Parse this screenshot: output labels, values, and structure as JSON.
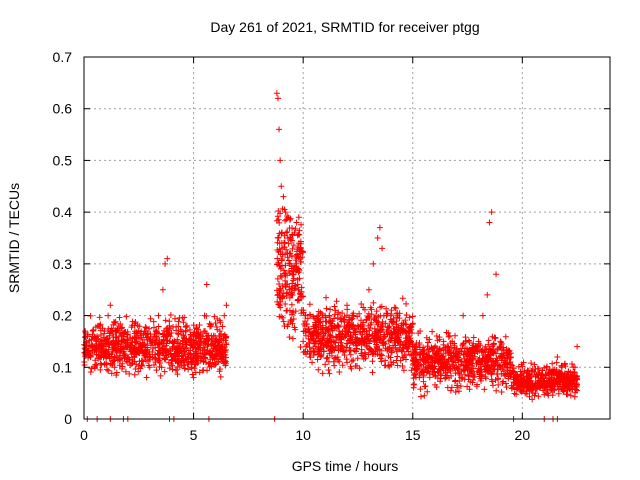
{
  "chart_data": {
    "type": "scatter",
    "title": "Day 261 of 2021, SRMTID for receiver ptgg",
    "xlabel": "GPS time / hours",
    "ylabel": "SRMTID / TECUs",
    "xlim": [
      0,
      24
    ],
    "ylim": [
      0,
      0.7
    ],
    "xticks": [
      0,
      5,
      10,
      15,
      20
    ],
    "yticks": [
      0,
      0.1,
      0.2,
      0.3,
      0.4,
      0.5,
      0.6,
      0.7
    ],
    "grid": true,
    "marker": "+",
    "marker_color": "#ff0000",
    "series": [
      {
        "name": "SRMTID",
        "x": [
          0.05,
          0.1,
          0.2,
          0.3,
          0.4,
          0.5,
          0.6,
          0.7,
          0.8,
          0.9,
          1.0,
          1.1,
          1.2,
          1.3,
          1.4,
          1.5,
          1.6,
          1.7,
          1.8,
          1.9,
          2.0,
          2.2,
          2.4,
          2.6,
          2.8,
          3.0,
          3.2,
          3.4,
          3.6,
          3.7,
          3.8,
          3.9,
          4.0,
          4.1,
          4.3,
          4.5,
          4.7,
          4.9,
          5.0,
          5.1,
          5.2,
          5.3,
          5.5,
          5.6,
          5.8,
          6.0,
          6.2,
          6.4,
          6.5,
          8.8,
          8.85,
          8.9,
          8.95,
          9.0,
          9.1,
          9.2,
          9.3,
          9.4,
          9.5,
          9.6,
          9.7,
          9.8,
          10.0,
          10.2,
          10.5,
          10.8,
          11.0,
          11.3,
          11.6,
          12.0,
          12.3,
          12.6,
          13.0,
          13.2,
          13.4,
          13.5,
          13.6,
          13.8,
          14.0,
          14.3,
          14.6,
          15.0,
          15.3,
          15.6,
          16.0,
          16.4,
          16.8,
          17.0,
          17.3,
          17.6,
          18.0,
          18.2,
          18.4,
          18.5,
          18.6,
          18.8,
          19.0,
          19.3,
          19.6,
          20.0,
          20.3,
          20.6,
          21.0,
          21.3,
          21.6,
          21.8,
          22.0,
          22.2,
          22.4,
          22.5
        ],
        "y": [
          0.17,
          0.15,
          0.13,
          0.12,
          0.14,
          0.1,
          0.16,
          0.18,
          0.15,
          0.12,
          0.14,
          0.2,
          0.22,
          0.17,
          0.1,
          0.09,
          0.16,
          0.14,
          0.13,
          0.12,
          0.11,
          0.13,
          0.15,
          0.14,
          0.12,
          0.1,
          0.16,
          0.2,
          0.25,
          0.3,
          0.31,
          0.18,
          0.12,
          0.14,
          0.11,
          0.15,
          0.18,
          0.1,
          0.08,
          0.09,
          0.12,
          0.15,
          0.2,
          0.26,
          0.18,
          0.15,
          0.17,
          0.2,
          0.22,
          0.63,
          0.62,
          0.56,
          0.5,
          0.45,
          0.43,
          0.4,
          0.35,
          0.3,
          0.28,
          0.36,
          0.38,
          0.25,
          0.15,
          0.13,
          0.17,
          0.12,
          0.2,
          0.15,
          0.18,
          0.22,
          0.2,
          0.15,
          0.25,
          0.3,
          0.35,
          0.37,
          0.33,
          0.2,
          0.2,
          0.15,
          0.12,
          0.14,
          0.08,
          0.1,
          0.09,
          0.12,
          0.15,
          0.1,
          0.2,
          0.12,
          0.15,
          0.2,
          0.24,
          0.38,
          0.4,
          0.28,
          0.15,
          0.1,
          0.08,
          0.07,
          0.06,
          0.05,
          0.06,
          0.07,
          0.12,
          0.1,
          0.08,
          0.09,
          0.1,
          0.14
        ],
        "density": [
          {
            "from": 0.0,
            "to": 6.5,
            "center": 0.14,
            "spread": 0.045,
            "count": 900
          },
          {
            "from": 8.8,
            "to": 10.0,
            "center": 0.28,
            "spread": 0.1,
            "count": 220
          },
          {
            "from": 10.0,
            "to": 15.0,
            "center": 0.16,
            "spread": 0.05,
            "count": 700
          },
          {
            "from": 15.0,
            "to": 19.5,
            "center": 0.11,
            "spread": 0.045,
            "count": 650
          },
          {
            "from": 19.5,
            "to": 22.5,
            "center": 0.075,
            "spread": 0.025,
            "count": 420
          }
        ]
      }
    ],
    "zero_markers_x": [
      0.15,
      0.6,
      1.2,
      1.8,
      2.0,
      3.9,
      4.1,
      5.7,
      8.7,
      19.6,
      21.0,
      21.4,
      21.6
    ]
  }
}
